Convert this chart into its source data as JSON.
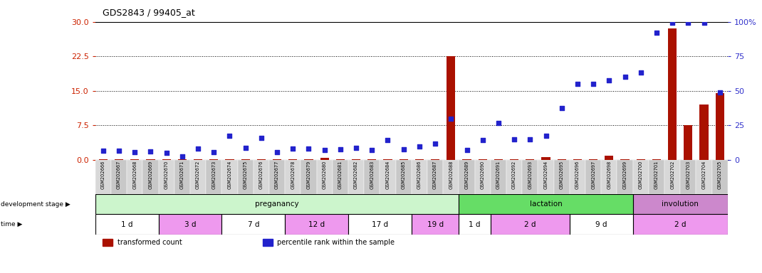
{
  "title": "GDS2843 / 99405_at",
  "samples": [
    "GSM202666",
    "GSM202667",
    "GSM202668",
    "GSM202669",
    "GSM202670",
    "GSM202671",
    "GSM202672",
    "GSM202673",
    "GSM202674",
    "GSM202675",
    "GSM202676",
    "GSM202677",
    "GSM202678",
    "GSM202679",
    "GSM202680",
    "GSM202681",
    "GSM202682",
    "GSM202683",
    "GSM202684",
    "GSM202685",
    "GSM202686",
    "GSM202687",
    "GSM202688",
    "GSM202689",
    "GSM202690",
    "GSM202691",
    "GSM202692",
    "GSM202693",
    "GSM202694",
    "GSM202695",
    "GSM202696",
    "GSM202697",
    "GSM202698",
    "GSM202699",
    "GSM202700",
    "GSM202701",
    "GSM202702",
    "GSM202703",
    "GSM202704",
    "GSM202705"
  ],
  "transformed_count": [
    0.15,
    0.15,
    0.15,
    0.15,
    0.15,
    0.15,
    0.15,
    0.15,
    0.15,
    0.15,
    0.15,
    0.15,
    0.15,
    0.15,
    0.4,
    0.15,
    0.15,
    0.15,
    0.15,
    0.15,
    0.15,
    0.15,
    22.5,
    0.15,
    0.15,
    0.15,
    0.15,
    0.15,
    0.5,
    0.15,
    0.15,
    0.15,
    0.8,
    0.15,
    0.15,
    0.15,
    28.5,
    7.5,
    12.0,
    14.5
  ],
  "percentile_rank": [
    6.5,
    6.5,
    5.5,
    6.0,
    5.0,
    2.5,
    8.0,
    5.5,
    17.5,
    8.5,
    16.0,
    5.5,
    8.0,
    8.0,
    7.0,
    7.5,
    8.5,
    7.0,
    14.5,
    7.5,
    9.5,
    11.5,
    29.5,
    7.0,
    14.0,
    26.5,
    15.0,
    15.0,
    17.5,
    37.5,
    55.0,
    55.0,
    57.5,
    60.0,
    63.0,
    92.0,
    99.5,
    99.5,
    99.5,
    49.0
  ],
  "left_yticks": [
    0,
    7.5,
    15,
    22.5,
    30
  ],
  "right_yticks": [
    0,
    25,
    50,
    75,
    100
  ],
  "left_ylim": [
    0,
    30
  ],
  "right_ylim": [
    0,
    100
  ],
  "development_stages": [
    {
      "label": "preganancy",
      "start": 0,
      "end": 22,
      "color": "#ccf5cc"
    },
    {
      "label": "lactation",
      "start": 23,
      "end": 33,
      "color": "#66dd66"
    },
    {
      "label": "involution",
      "start": 34,
      "end": 39,
      "color": "#cc88cc"
    }
  ],
  "time_periods": [
    {
      "label": "1 d",
      "start": 0,
      "end": 3,
      "color": "#ffffff"
    },
    {
      "label": "3 d",
      "start": 4,
      "end": 7,
      "color": "#ee99ee"
    },
    {
      "label": "7 d",
      "start": 8,
      "end": 11,
      "color": "#ffffff"
    },
    {
      "label": "12 d",
      "start": 12,
      "end": 15,
      "color": "#ee99ee"
    },
    {
      "label": "17 d",
      "start": 16,
      "end": 19,
      "color": "#ffffff"
    },
    {
      "label": "19 d",
      "start": 20,
      "end": 22,
      "color": "#ee99ee"
    },
    {
      "label": "1 d",
      "start": 23,
      "end": 24,
      "color": "#ffffff"
    },
    {
      "label": "2 d",
      "start": 25,
      "end": 29,
      "color": "#ee99ee"
    },
    {
      "label": "9 d",
      "start": 30,
      "end": 33,
      "color": "#ffffff"
    },
    {
      "label": "2 d",
      "start": 34,
      "end": 39,
      "color": "#ee99ee"
    }
  ],
  "bar_color": "#aa1100",
  "dot_color": "#2222cc",
  "grid_color": "#000000",
  "axis_color_left": "#cc2200",
  "axis_color_right": "#3333cc",
  "legend_items": [
    {
      "label": "transformed count",
      "color": "#aa1100"
    },
    {
      "label": "percentile rank within the sample",
      "color": "#2222cc"
    }
  ]
}
